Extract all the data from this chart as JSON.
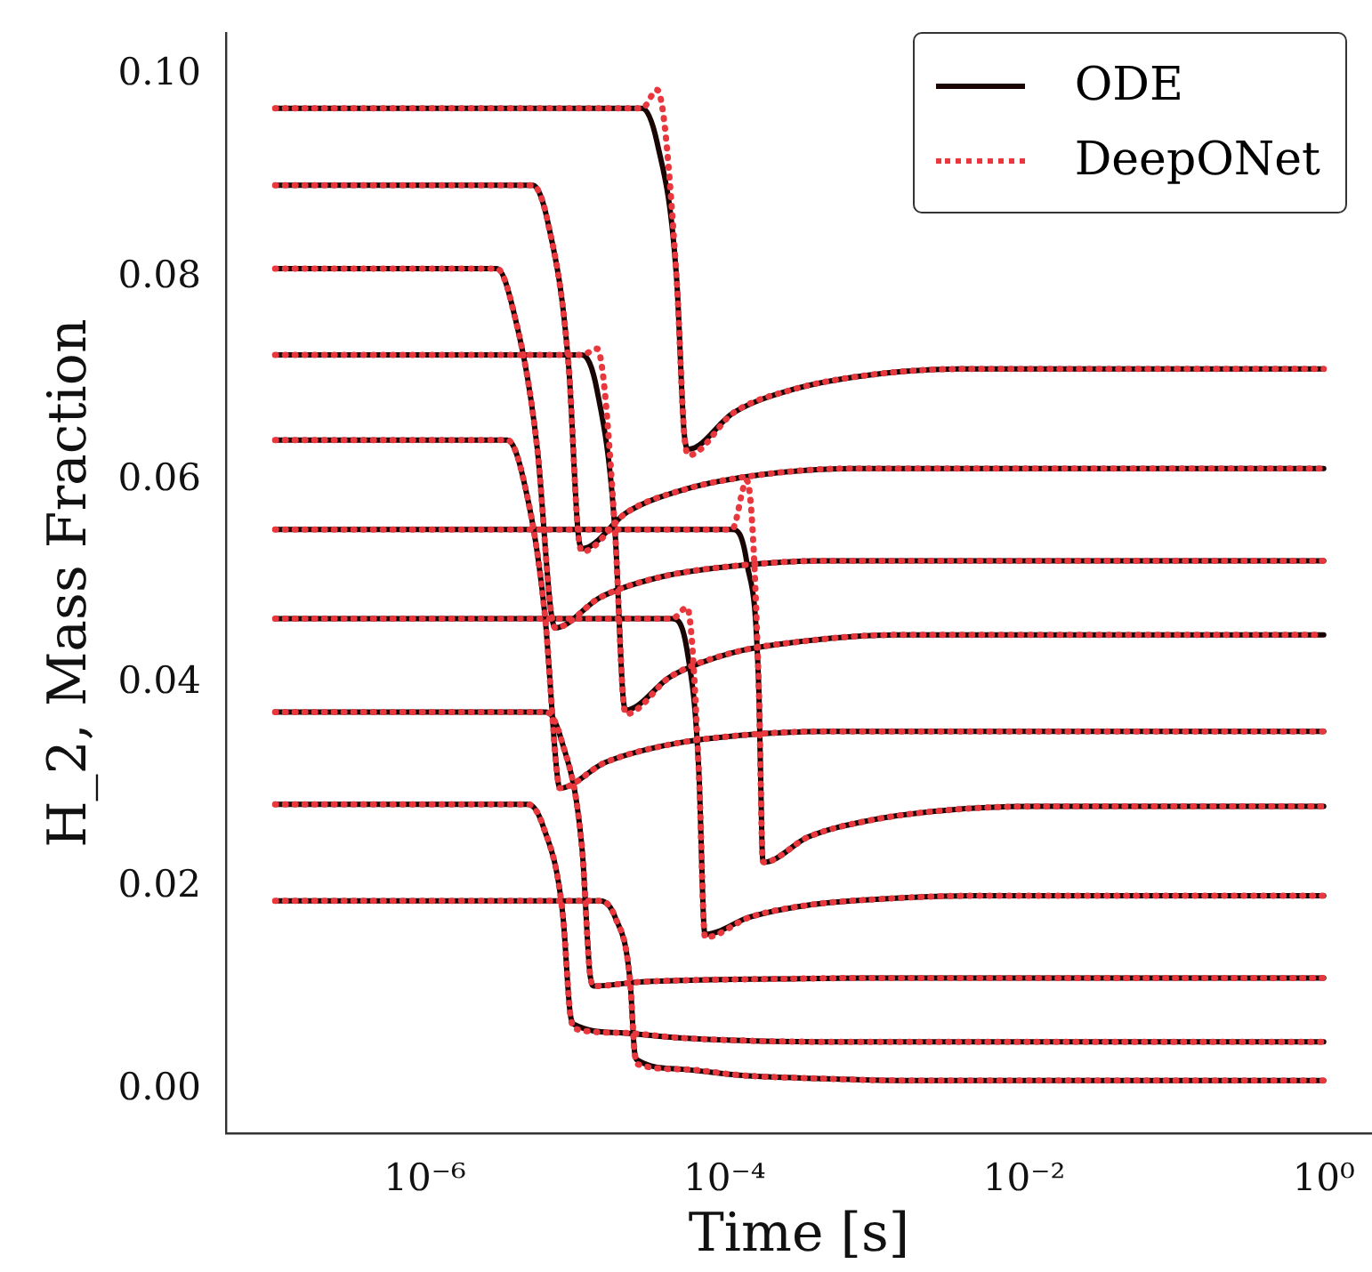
{
  "chart_data": {
    "type": "line",
    "xlabel": "Time [s]",
    "ylabel": "H_2, Mass Fraction",
    "log": "x",
    "grid": false,
    "legend": "top right",
    "marker": "none",
    "xlim": [
      4.7e-08,
      2.1
    ],
    "xticks": [
      {
        "value": 1e-06,
        "label": "10⁻⁶"
      },
      {
        "value": 0.0001,
        "label": "10⁻⁴"
      },
      {
        "value": 0.01,
        "label": "10⁻²"
      },
      {
        "value": 1,
        "label": "10⁰"
      }
    ],
    "ylim": [
      -0.0043,
      0.1041
    ],
    "yticks": [
      {
        "value": 0,
        "label": "0.00"
      },
      {
        "value": 0.02,
        "label": "0.02"
      },
      {
        "value": 0.04,
        "label": "0.04"
      },
      {
        "value": 0.06,
        "label": "0.06"
      },
      {
        "value": 0.08,
        "label": "0.08"
      },
      {
        "value": 0.1,
        "label": "0.10"
      }
    ],
    "series": [
      {
        "name": "ODE",
        "color": "#1a0505",
        "line_style": "solid",
        "x": [
          1e-07,
          2.82e-05,
          3.55e-05,
          4.79e-05,
          5.37e-05,
          5.75e-05,
          0.000115,
          0.000288,
          0.000912,
          0.00363,
          1
        ],
        "values": [
          0.0967,
          0.0967,
          0.0933,
          0.0799,
          0.0648,
          0.0631,
          0.0667,
          0.069,
          0.0704,
          0.071,
          0.071
        ]
      },
      {
        "color": "#1a0505",
        "line_style": "solid",
        "x": [
          1e-07,
          5.25e-06,
          6.61e-06,
          9.12e-06,
          1.05e-05,
          1.12e-05,
          2.24e-05,
          5.62e-05,
          0.000178,
          0.000708,
          1
        ],
        "values": [
          0.0891,
          0.0891,
          0.0855,
          0.0712,
          0.0551,
          0.0533,
          0.0569,
          0.0592,
          0.0606,
          0.0612,
          0.0612
        ]
      },
      {
        "color": "#1a0505",
        "line_style": "solid",
        "x": [
          1e-07,
          3.02e-06,
          3.8e-06,
          5.62e-06,
          6.92e-06,
          7.41e-06,
          1.48e-05,
          3.72e-05,
          0.000117,
          0.000468,
          1
        ],
        "values": [
          0.0809,
          0.0809,
          0.0774,
          0.0632,
          0.0473,
          0.0455,
          0.0485,
          0.0505,
          0.0516,
          0.0521,
          0.0521
        ]
      },
      {
        "color": "#1a0505",
        "line_style": "solid",
        "x": [
          1e-07,
          1.12e-05,
          1.41e-05,
          1.86e-05,
          2.09e-05,
          2.19e-05,
          4.37e-05,
          0.00011,
          0.000347,
          0.00138,
          1
        ],
        "values": [
          0.0724,
          0.0724,
          0.0689,
          0.0549,
          0.0392,
          0.0374,
          0.0407,
          0.043,
          0.0442,
          0.0448,
          0.0448
        ]
      },
      {
        "color": "#1a0505",
        "line_style": "solid",
        "x": [
          1e-07,
          3.55e-06,
          4.47e-06,
          6.31e-06,
          7.59e-06,
          7.94e-06,
          1.58e-05,
          3.98e-05,
          0.000126,
          0.000501,
          1
        ],
        "values": [
          0.064,
          0.064,
          0.0606,
          0.0469,
          0.0314,
          0.0297,
          0.0322,
          0.0339,
          0.0349,
          0.0353,
          0.0353
        ]
      },
      {
        "color": "#1a0505",
        "line_style": "solid",
        "x": [
          1e-07,
          0.000112,
          0.000141,
          0.00017,
          0.000178,
          0.000182,
          0.000363,
          0.000912,
          0.00288,
          0.0115,
          1
        ],
        "values": [
          0.0552,
          0.0552,
          0.0519,
          0.0388,
          0.024,
          0.0224,
          0.0249,
          0.0265,
          0.0275,
          0.0279,
          0.0279
        ]
      },
      {
        "color": "#1a0505",
        "line_style": "solid",
        "x": [
          1e-07,
          4.47e-05,
          5.62e-05,
          6.76e-05,
          7.24e-05,
          7.41e-05,
          0.000148,
          0.000372,
          0.00117,
          0.00468,
          1
        ],
        "values": [
          0.0464,
          0.0464,
          0.0433,
          0.0309,
          0.0169,
          0.0153,
          0.017,
          0.0182,
          0.0188,
          0.0191,
          0.0191
        ]
      },
      {
        "color": "#1a0505",
        "line_style": "solid",
        "x": [
          1e-07,
          6.46e-06,
          8.13e-06,
          1.12e-05,
          1.26e-05,
          1.35e-05,
          2.69e-05,
          6.76e-05,
          0.000214,
          0.000851,
          1
        ],
        "values": [
          0.0372,
          0.0372,
          0.0345,
          0.0237,
          0.0116,
          0.0102,
          0.0106,
          0.0108,
          0.0109,
          0.011,
          0.011
        ]
      },
      {
        "color": "#1a0505",
        "line_style": "solid",
        "x": [
          1e-07,
          4.9e-06,
          6.17e-06,
          8.32e-06,
          9.33e-06,
          1e-05,
          2e-05,
          5.01e-05,
          0.000158,
          0.000631,
          1
        ],
        "values": [
          0.0281,
          0.0281,
          0.0259,
          0.0173,
          0.0075,
          0.0064,
          0.0056,
          0.0051,
          0.0048,
          0.0047,
          0.0047
        ]
      },
      {
        "color": "#1a0505",
        "line_style": "solid",
        "x": [
          1e-07,
          1.48e-05,
          1.86e-05,
          2.34e-05,
          2.51e-05,
          2.63e-05,
          5.25e-05,
          0.000132,
          0.000417,
          0.00166,
          1
        ],
        "values": [
          0.0186,
          0.0186,
          0.017,
          0.0108,
          0.0037,
          0.0029,
          0.002,
          0.0014,
          0.0011,
          0.0009,
          0.0009
        ]
      },
      {
        "name": "DeepONet",
        "color": "#e8383d",
        "line_style": "dotted",
        "x": [
          1e-07,
          2.82e-05,
          3.55e-05,
          4.79e-05,
          5.37e-05,
          5.75e-05,
          0.000115,
          0.000288,
          0.000912,
          0.00363,
          1
        ],
        "values": [
          0.0967,
          0.0967,
          0.0985,
          0.0799,
          0.0648,
          0.0625,
          0.0667,
          0.069,
          0.0704,
          0.071,
          0.071
        ]
      },
      {
        "color": "#e8383d",
        "line_style": "dotted",
        "x": [
          1e-07,
          5.25e-06,
          6.61e-06,
          9.12e-06,
          1.05e-05,
          1.12e-05,
          2.24e-05,
          5.62e-05,
          0.000178,
          0.000708,
          1
        ],
        "values": [
          0.0891,
          0.0891,
          0.0855,
          0.0712,
          0.0551,
          0.053,
          0.0569,
          0.0592,
          0.0606,
          0.0612,
          0.0612
        ]
      },
      {
        "color": "#e8383d",
        "line_style": "dotted",
        "x": [
          1e-07,
          3.02e-06,
          3.8e-06,
          5.62e-06,
          6.92e-06,
          7.41e-06,
          1.48e-05,
          3.72e-05,
          0.000117,
          0.000468,
          1
        ],
        "values": [
          0.0809,
          0.0809,
          0.0774,
          0.0632,
          0.0473,
          0.0455,
          0.0485,
          0.0505,
          0.0516,
          0.0521,
          0.0521
        ]
      },
      {
        "color": "#e8383d",
        "line_style": "dotted",
        "x": [
          1e-07,
          1.12e-05,
          1.41e-05,
          1.86e-05,
          2.09e-05,
          2.19e-05,
          4.37e-05,
          0.00011,
          0.000347,
          0.00138,
          1
        ],
        "values": [
          0.0724,
          0.0724,
          0.073,
          0.0549,
          0.0392,
          0.037,
          0.0407,
          0.043,
          0.0442,
          0.0448,
          0.0448
        ]
      },
      {
        "color": "#e8383d",
        "line_style": "dotted",
        "x": [
          1e-07,
          3.55e-06,
          4.47e-06,
          6.31e-06,
          7.59e-06,
          7.94e-06,
          1.58e-05,
          3.98e-05,
          0.000126,
          0.000501,
          1
        ],
        "values": [
          0.064,
          0.064,
          0.0606,
          0.0469,
          0.0314,
          0.0297,
          0.0322,
          0.0339,
          0.0349,
          0.0353,
          0.0353
        ]
      },
      {
        "color": "#e8383d",
        "line_style": "dotted",
        "x": [
          1e-07,
          0.000112,
          0.000141,
          0.00017,
          0.000178,
          0.000182,
          0.000363,
          0.000912,
          0.00288,
          0.0115,
          1
        ],
        "values": [
          0.0552,
          0.0552,
          0.06,
          0.0388,
          0.024,
          0.0224,
          0.0249,
          0.0265,
          0.0275,
          0.0279,
          0.0279
        ]
      },
      {
        "color": "#e8383d",
        "line_style": "dotted",
        "x": [
          1e-07,
          4.47e-05,
          5.62e-05,
          6.76e-05,
          7.24e-05,
          7.41e-05,
          0.000148,
          0.000372,
          0.00117,
          0.00468,
          1
        ],
        "values": [
          0.0464,
          0.0464,
          0.0475,
          0.0309,
          0.0169,
          0.015,
          0.017,
          0.0182,
          0.0188,
          0.0191,
          0.0191
        ]
      },
      {
        "color": "#e8383d",
        "line_style": "dotted",
        "x": [
          1e-07,
          6.46e-06,
          8.13e-06,
          1.12e-05,
          1.26e-05,
          1.35e-05,
          2.69e-05,
          6.76e-05,
          0.000214,
          0.000851,
          1
        ],
        "values": [
          0.0372,
          0.0372,
          0.0345,
          0.0237,
          0.0116,
          0.0102,
          0.0106,
          0.0108,
          0.0109,
          0.011,
          0.011
        ]
      },
      {
        "color": "#e8383d",
        "line_style": "dotted",
        "x": [
          1e-07,
          4.9e-06,
          6.17e-06,
          8.32e-06,
          9.33e-06,
          1e-05,
          2e-05,
          5.01e-05,
          0.000158,
          0.000631,
          1
        ],
        "values": [
          0.0281,
          0.0281,
          0.0259,
          0.0173,
          0.0075,
          0.006,
          0.0056,
          0.0051,
          0.0048,
          0.0047,
          0.0047
        ]
      },
      {
        "color": "#e8383d",
        "line_style": "dotted",
        "x": [
          1e-07,
          1.48e-05,
          1.86e-05,
          2.34e-05,
          2.51e-05,
          2.63e-05,
          5.25e-05,
          0.000132,
          0.000417,
          0.00166,
          1
        ],
        "values": [
          0.0186,
          0.0186,
          0.017,
          0.0108,
          0.0037,
          0.0025,
          0.002,
          0.0014,
          0.0011,
          0.0009,
          0.0009
        ]
      }
    ]
  }
}
